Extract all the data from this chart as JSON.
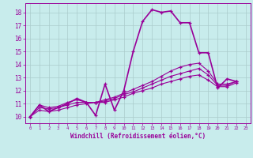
{
  "title": "",
  "xlabel": "Windchill (Refroidissement éolien,°C)",
  "ylabel": "",
  "bg_color": "#c8ecec",
  "line_color": "#990099",
  "grid_color": "#aacccc",
  "xlim": [
    -0.5,
    23.5
  ],
  "ylim": [
    9.5,
    18.7
  ],
  "xticks": [
    0,
    1,
    2,
    3,
    4,
    5,
    6,
    7,
    8,
    9,
    10,
    11,
    12,
    13,
    14,
    15,
    16,
    17,
    18,
    19,
    20,
    21,
    22,
    23
  ],
  "yticks": [
    10,
    11,
    12,
    13,
    14,
    15,
    16,
    17,
    18
  ],
  "series": [
    {
      "x": [
        0,
        1,
        2,
        3,
        4,
        5,
        6,
        7,
        8,
        9,
        10,
        11,
        12,
        13,
        14,
        15,
        16,
        17,
        18,
        19,
        20,
        21,
        22
      ],
      "y": [
        10.0,
        10.9,
        10.4,
        10.7,
        11.0,
        11.4,
        11.1,
        10.1,
        12.5,
        10.5,
        12.0,
        15.0,
        17.3,
        18.2,
        18.0,
        18.1,
        17.2,
        17.2,
        14.9,
        14.9,
        12.2,
        12.9,
        12.7
      ]
    },
    {
      "x": [
        0,
        1,
        2,
        3,
        4,
        5,
        6,
        7,
        8,
        9,
        10,
        11,
        12,
        13,
        14,
        15,
        16,
        17,
        18,
        19,
        20,
        21,
        22
      ],
      "y": [
        10.0,
        10.9,
        10.7,
        10.8,
        11.1,
        11.3,
        11.1,
        11.1,
        11.3,
        11.5,
        11.8,
        12.1,
        12.4,
        12.7,
        13.1,
        13.5,
        13.8,
        14.0,
        14.1,
        13.5,
        12.5,
        12.5,
        12.7
      ]
    },
    {
      "x": [
        0,
        1,
        2,
        3,
        4,
        5,
        6,
        7,
        8,
        9,
        10,
        11,
        12,
        13,
        14,
        15,
        16,
        17,
        18,
        19,
        20,
        21,
        22
      ],
      "y": [
        10.0,
        10.7,
        10.6,
        10.7,
        10.9,
        11.1,
        11.1,
        11.1,
        11.2,
        11.4,
        11.7,
        11.9,
        12.2,
        12.5,
        12.8,
        13.1,
        13.3,
        13.5,
        13.7,
        13.2,
        12.4,
        12.4,
        12.7
      ]
    },
    {
      "x": [
        0,
        1,
        2,
        3,
        4,
        5,
        6,
        7,
        8,
        9,
        10,
        11,
        12,
        13,
        14,
        15,
        16,
        17,
        18,
        19,
        20,
        21,
        22
      ],
      "y": [
        10.0,
        10.5,
        10.4,
        10.5,
        10.7,
        10.9,
        11.0,
        11.1,
        11.1,
        11.3,
        11.5,
        11.8,
        12.0,
        12.2,
        12.5,
        12.7,
        12.9,
        13.1,
        13.2,
        12.8,
        12.3,
        12.3,
        12.6
      ]
    }
  ]
}
